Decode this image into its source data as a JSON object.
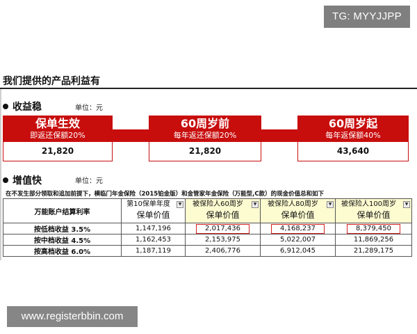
{
  "watermarks": {
    "top_right": "TG: MYYJJPP",
    "bottom_left": "www.registerbbin.com"
  },
  "title": "我们提供的产品利益有",
  "stable": {
    "heading": "收益稳",
    "unit": "单位：元",
    "cards": [
      {
        "title": "保单生效",
        "subtitle": "即返还保额20%",
        "value": "21,820"
      },
      {
        "title": "60周岁前",
        "subtitle": "每年返还保额20%",
        "value": "21,820"
      },
      {
        "title": "60周岁起",
        "subtitle": "每年返保额40%",
        "value": "43,640"
      }
    ]
  },
  "growth": {
    "heading": "增值快",
    "unit": "单位：元",
    "note": "在不发生部分领取和追加前提下，横临门年金保险（2015铂金版）和金管家年金保险（万能型,C款）的现金价值总和如下",
    "table": {
      "corner": "万能账户结算利率",
      "columns": [
        {
          "line1": "第10保单年度",
          "line2": "保单价值"
        },
        {
          "line1": "被保险人60周岁",
          "line2": "保单价值"
        },
        {
          "line1": "被保险人80周岁",
          "line2": "保单价值"
        },
        {
          "line1": "被保险人100周岁",
          "line2": "保单价值"
        }
      ],
      "rows": [
        {
          "label": "按低档收益 3.5%",
          "values": [
            "1,147,196",
            "2,017,436",
            "4,168,237",
            "8,379,450"
          ]
        },
        {
          "label": "按中档收益 4.5%",
          "values": [
            "1,162,453",
            "2,153,975",
            "5,022,007",
            "11,869,256"
          ]
        },
        {
          "label": "按高档收益 6.0%",
          "values": [
            "1,187,119",
            "2,406,776",
            "6,912,045",
            "21,289,175"
          ]
        }
      ]
    }
  }
}
